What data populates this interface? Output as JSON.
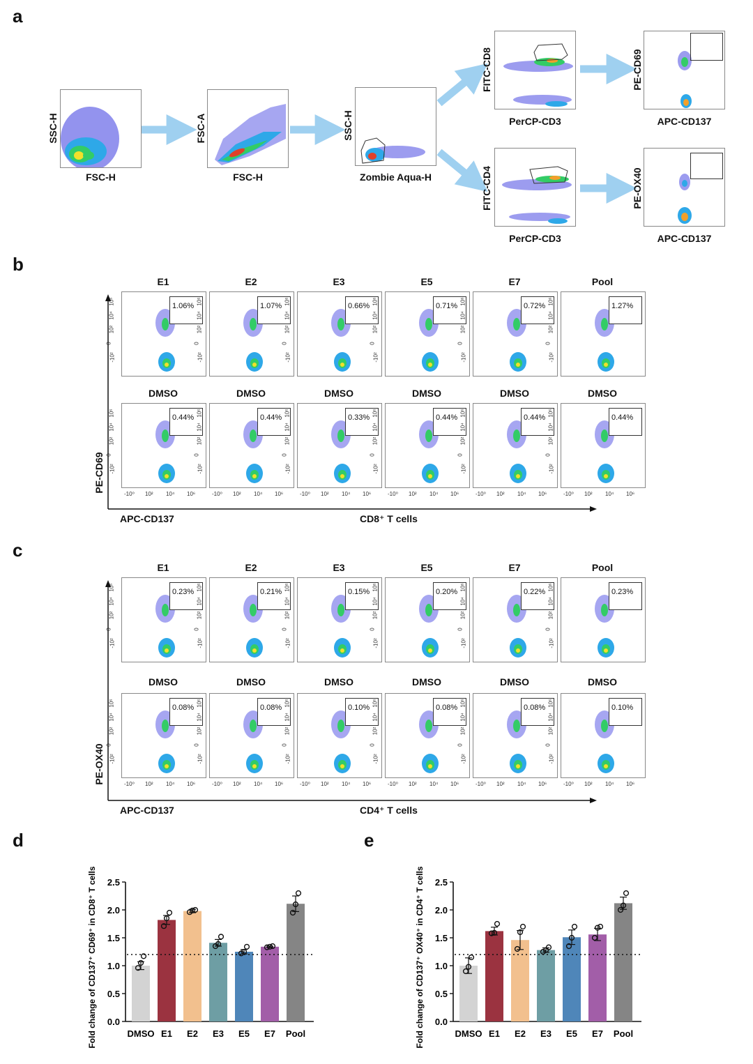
{
  "panels": {
    "a": "a",
    "b": "b",
    "c": "c",
    "d": "d",
    "e": "e"
  },
  "gating": {
    "plots": [
      {
        "id": "p1",
        "y_label": "SSC-H",
        "x_label": "FSC-H"
      },
      {
        "id": "p2",
        "y_label": "FSC-A",
        "x_label": "FSC-H"
      },
      {
        "id": "p3",
        "y_label": "SSC-H",
        "x_label": "Zombie Aqua-H"
      },
      {
        "id": "p4",
        "y_label": "FITC-CD8",
        "x_label": "PerCP-CD3"
      },
      {
        "id": "p5",
        "y_label": "PE-CD69",
        "x_label": "APC-CD137"
      },
      {
        "id": "p6",
        "y_label": "FITC-CD4",
        "x_label": "PerCP-CD3"
      },
      {
        "id": "p7",
        "y_label": "PE-OX40",
        "x_label": "APC-CD137"
      }
    ]
  },
  "panel_b": {
    "conditions": [
      "E1",
      "E2",
      "E3",
      "E5",
      "E7",
      "Pool"
    ],
    "top_values": [
      "1.06%",
      "1.07%",
      "0.66%",
      "0.71%",
      "0.72%",
      "1.27%"
    ],
    "control_label": "DMSO",
    "bottom_values": [
      "0.44%",
      "0.44%",
      "0.33%",
      "0.44%",
      "0.44%",
      "0.44%"
    ],
    "y_axis": "PE-CD69",
    "x_axis": "APC-CD137",
    "cell_type": "CD8⁺ T cells",
    "y_ticks": [
      "10⁶",
      "10⁴",
      "10²",
      "0",
      "-10²"
    ],
    "x_ticks": [
      "-10⁰",
      "10²",
      "10⁴",
      "10⁶"
    ]
  },
  "panel_c": {
    "conditions": [
      "E1",
      "E2",
      "E3",
      "E5",
      "E7",
      "Pool"
    ],
    "top_values": [
      "0.23%",
      "0.21%",
      "0.15%",
      "0.20%",
      "0.22%",
      "0.23%"
    ],
    "control_label": "DMSO",
    "bottom_values": [
      "0.08%",
      "0.08%",
      "0.10%",
      "0.08%",
      "0.08%",
      "0.10%"
    ],
    "y_axis": "PE-OX40",
    "x_axis": "APC-CD137",
    "cell_type": "CD4⁺ T cells",
    "y_ticks": [
      "10⁶",
      "10⁴",
      "10²",
      "0",
      "-10²"
    ],
    "x_ticks": [
      "-10⁰",
      "10²",
      "10⁴",
      "10⁶"
    ]
  },
  "chart_data": [
    {
      "type": "bar",
      "panel": "d",
      "categories": [
        "DMSO",
        "E1",
        "E2",
        "E3",
        "E5",
        "E7",
        "Pool"
      ],
      "values": [
        1.0,
        1.82,
        1.98,
        1.41,
        1.25,
        1.34,
        2.11
      ],
      "errors": [
        0.07,
        0.08,
        0.03,
        0.06,
        0.04,
        0.01,
        0.14
      ],
      "points": [
        [
          0.96,
          1.05,
          1.17
        ],
        [
          1.71,
          1.85,
          1.95
        ],
        [
          1.96,
          1.99,
          2.0
        ],
        [
          1.35,
          1.39,
          1.52
        ],
        [
          1.22,
          1.25,
          1.34
        ],
        [
          1.33,
          1.34,
          1.35
        ],
        [
          1.95,
          2.1,
          2.3
        ]
      ],
      "colors": [
        "#d3d3d3",
        "#9b3340",
        "#f2c08e",
        "#6e9ea4",
        "#4f86b9",
        "#a25ea8",
        "#858585"
      ],
      "ylabel": "Fold change of CD137⁺ CD69⁺ in CD8⁺ T cells",
      "ylim": [
        0,
        2.5
      ],
      "yticks": [
        "0.0",
        "0.5",
        "1.0",
        "1.5",
        "2.0",
        "2.5"
      ],
      "reference_line": 1.2
    },
    {
      "type": "bar",
      "panel": "e",
      "categories": [
        "DMSO",
        "E1",
        "E2",
        "E3",
        "E5",
        "E7",
        "Pool"
      ],
      "values": [
        1.0,
        1.62,
        1.46,
        1.28,
        1.51,
        1.56,
        2.12
      ],
      "errors": [
        0.14,
        0.07,
        0.17,
        0.04,
        0.13,
        0.11,
        0.11
      ],
      "points": [
        [
          0.9,
          0.98,
          1.15
        ],
        [
          1.58,
          1.59,
          1.75
        ],
        [
          1.3,
          1.6,
          1.7
        ],
        [
          1.25,
          1.28,
          1.33
        ],
        [
          1.35,
          1.5,
          1.7
        ],
        [
          1.5,
          1.68,
          1.7
        ],
        [
          2.0,
          2.08,
          2.3
        ]
      ],
      "colors": [
        "#d3d3d3",
        "#9b3340",
        "#f2c08e",
        "#6e9ea4",
        "#4f86b9",
        "#a25ea8",
        "#858585"
      ],
      "ylabel": "Fold change of CD137⁺ OX40⁺ in CD4⁺ T cells",
      "ylim": [
        0,
        2.5
      ],
      "yticks": [
        "0.0",
        "0.5",
        "1.0",
        "1.5",
        "2.0",
        "2.5"
      ],
      "reference_line": 1.2
    }
  ]
}
